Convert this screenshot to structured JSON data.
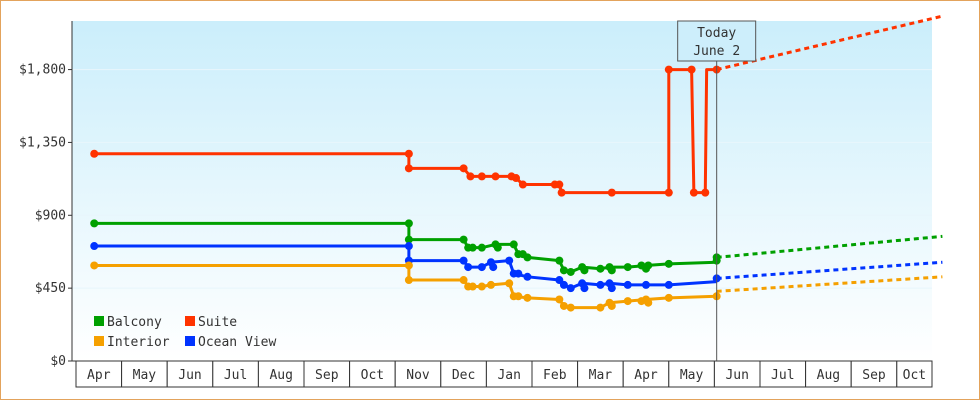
{
  "chart_data": {
    "type": "line",
    "ylim": [
      0,
      2100
    ],
    "y_ticks": [
      0,
      450,
      900,
      1350,
      1800
    ],
    "y_tick_labels": [
      "$0",
      "$450",
      "$900",
      "$1,350",
      "$1,800"
    ],
    "x_months": [
      "Apr",
      "May",
      "Jun",
      "Jul",
      "Aug",
      "Sep",
      "Oct",
      "Nov",
      "Dec",
      "Jan",
      "Feb",
      "Mar",
      "Apr",
      "May",
      "Jun",
      "Jul",
      "Aug",
      "Sep",
      "Oct"
    ],
    "today": {
      "line1": "Today",
      "line2": "June 2",
      "x": 13.55
    },
    "legend": [
      {
        "label": "Balcony",
        "series": "Balcony"
      },
      {
        "label": "Suite",
        "series": "Suite"
      },
      {
        "label": "Interior",
        "series": "Interior"
      },
      {
        "label": "Ocean View",
        "series": "Ocean View"
      }
    ],
    "series": [
      {
        "name": "Suite",
        "color": "#ff3300",
        "points": [
          [
            -0.1,
            1280
          ],
          [
            6.8,
            1280
          ],
          [
            6.8,
            1190
          ],
          [
            8.0,
            1190
          ],
          [
            8.15,
            1140
          ],
          [
            8.4,
            1140
          ],
          [
            8.7,
            1140
          ],
          [
            9.05,
            1140
          ],
          [
            9.15,
            1130
          ],
          [
            9.3,
            1090
          ],
          [
            10.1,
            1090
          ],
          [
            10.15,
            1040
          ],
          [
            12.5,
            1040
          ],
          [
            12.5,
            1800
          ],
          [
            12.9,
            1800
          ],
          [
            13.0,
            1800
          ],
          [
            13.05,
            1040
          ],
          [
            13.3,
            1040
          ],
          [
            13.33,
            1800
          ],
          [
            13.55,
            1800
          ]
        ],
        "markers": [
          [
            -0.1,
            1280
          ],
          [
            6.8,
            1280
          ],
          [
            6.8,
            1190
          ],
          [
            8.0,
            1190
          ],
          [
            8.15,
            1140
          ],
          [
            8.4,
            1140
          ],
          [
            8.7,
            1140
          ],
          [
            9.05,
            1140
          ],
          [
            9.15,
            1130
          ],
          [
            9.3,
            1090
          ],
          [
            10.0,
            1090
          ],
          [
            10.1,
            1090
          ],
          [
            10.15,
            1040
          ],
          [
            11.25,
            1040
          ],
          [
            12.5,
            1040
          ],
          [
            12.5,
            1800
          ],
          [
            13.0,
            1800
          ],
          [
            13.05,
            1040
          ],
          [
            13.3,
            1040
          ],
          [
            13.55,
            1800
          ]
        ],
        "forecast": [
          [
            13.55,
            1800
          ],
          [
            18.5,
            2130
          ]
        ]
      },
      {
        "name": "Balcony",
        "color": "#00a000",
        "points": [
          [
            -0.1,
            850
          ],
          [
            6.8,
            850
          ],
          [
            6.8,
            750
          ],
          [
            8.0,
            750
          ],
          [
            8.1,
            700
          ],
          [
            8.4,
            700
          ],
          [
            8.7,
            720
          ],
          [
            9.1,
            720
          ],
          [
            9.2,
            660
          ],
          [
            9.4,
            640
          ],
          [
            10.1,
            620
          ],
          [
            10.2,
            560
          ],
          [
            10.35,
            550
          ],
          [
            10.6,
            580
          ],
          [
            11.0,
            570
          ],
          [
            11.2,
            580
          ],
          [
            11.6,
            580
          ],
          [
            12.0,
            590
          ],
          [
            12.5,
            600
          ],
          [
            13.55,
            610
          ]
        ],
        "markers": [
          [
            -0.1,
            850
          ],
          [
            6.8,
            850
          ],
          [
            6.8,
            750
          ],
          [
            8.0,
            750
          ],
          [
            8.1,
            700
          ],
          [
            8.2,
            700
          ],
          [
            8.4,
            700
          ],
          [
            8.7,
            720
          ],
          [
            8.75,
            700
          ],
          [
            9.1,
            720
          ],
          [
            9.2,
            660
          ],
          [
            9.3,
            660
          ],
          [
            9.4,
            640
          ],
          [
            10.1,
            620
          ],
          [
            10.2,
            560
          ],
          [
            10.35,
            550
          ],
          [
            10.6,
            580
          ],
          [
            10.65,
            560
          ],
          [
            11.0,
            570
          ],
          [
            11.2,
            580
          ],
          [
            11.25,
            560
          ],
          [
            11.6,
            580
          ],
          [
            11.9,
            590
          ],
          [
            12.0,
            570
          ],
          [
            12.05,
            590
          ],
          [
            12.5,
            600
          ],
          [
            13.55,
            620
          ],
          [
            13.55,
            640
          ]
        ],
        "forecast": [
          [
            13.55,
            640
          ],
          [
            18.5,
            770
          ]
        ]
      },
      {
        "name": "Ocean View",
        "color": "#0033ff",
        "points": [
          [
            -0.1,
            710
          ],
          [
            6.8,
            710
          ],
          [
            6.8,
            620
          ],
          [
            8.0,
            620
          ],
          [
            8.1,
            580
          ],
          [
            8.4,
            580
          ],
          [
            8.6,
            610
          ],
          [
            9.0,
            620
          ],
          [
            9.1,
            540
          ],
          [
            9.4,
            520
          ],
          [
            10.1,
            500
          ],
          [
            10.2,
            470
          ],
          [
            10.35,
            450
          ],
          [
            10.6,
            480
          ],
          [
            11.0,
            470
          ],
          [
            11.2,
            480
          ],
          [
            11.6,
            470
          ],
          [
            12.0,
            470
          ],
          [
            12.5,
            470
          ],
          [
            13.55,
            490
          ]
        ],
        "markers": [
          [
            -0.1,
            710
          ],
          [
            6.8,
            710
          ],
          [
            6.8,
            620
          ],
          [
            8.0,
            620
          ],
          [
            8.1,
            580
          ],
          [
            8.4,
            580
          ],
          [
            8.6,
            610
          ],
          [
            8.65,
            580
          ],
          [
            9.0,
            620
          ],
          [
            9.1,
            540
          ],
          [
            9.2,
            540
          ],
          [
            9.4,
            520
          ],
          [
            10.1,
            500
          ],
          [
            10.2,
            470
          ],
          [
            10.35,
            450
          ],
          [
            10.6,
            480
          ],
          [
            10.65,
            450
          ],
          [
            11.0,
            470
          ],
          [
            11.2,
            480
          ],
          [
            11.25,
            450
          ],
          [
            11.6,
            470
          ],
          [
            12.0,
            470
          ],
          [
            12.5,
            470
          ],
          [
            13.55,
            510
          ]
        ],
        "forecast": [
          [
            13.55,
            510
          ],
          [
            18.5,
            610
          ]
        ]
      },
      {
        "name": "Interior",
        "color": "#f5a000",
        "points": [
          [
            -0.1,
            590
          ],
          [
            6.8,
            590
          ],
          [
            6.8,
            500
          ],
          [
            8.0,
            500
          ],
          [
            8.1,
            460
          ],
          [
            8.4,
            460
          ],
          [
            8.6,
            470
          ],
          [
            9.0,
            480
          ],
          [
            9.1,
            400
          ],
          [
            9.4,
            390
          ],
          [
            10.1,
            380
          ],
          [
            10.2,
            340
          ],
          [
            10.35,
            330
          ],
          [
            10.6,
            330
          ],
          [
            11.0,
            330
          ],
          [
            11.2,
            360
          ],
          [
            11.6,
            370
          ],
          [
            12.0,
            380
          ],
          [
            12.5,
            390
          ],
          [
            13.55,
            400
          ]
        ],
        "markers": [
          [
            -0.1,
            590
          ],
          [
            6.8,
            590
          ],
          [
            6.8,
            500
          ],
          [
            8.0,
            500
          ],
          [
            8.1,
            460
          ],
          [
            8.2,
            460
          ],
          [
            8.4,
            460
          ],
          [
            8.6,
            470
          ],
          [
            9.0,
            480
          ],
          [
            9.1,
            400
          ],
          [
            9.2,
            400
          ],
          [
            9.4,
            390
          ],
          [
            10.1,
            380
          ],
          [
            10.2,
            340
          ],
          [
            10.35,
            330
          ],
          [
            11.0,
            330
          ],
          [
            11.2,
            360
          ],
          [
            11.25,
            340
          ],
          [
            11.6,
            370
          ],
          [
            11.9,
            370
          ],
          [
            12.0,
            380
          ],
          [
            12.05,
            360
          ],
          [
            12.5,
            390
          ],
          [
            13.55,
            400
          ]
        ],
        "forecast": [
          [
            13.55,
            430
          ],
          [
            18.5,
            520
          ]
        ]
      }
    ]
  }
}
